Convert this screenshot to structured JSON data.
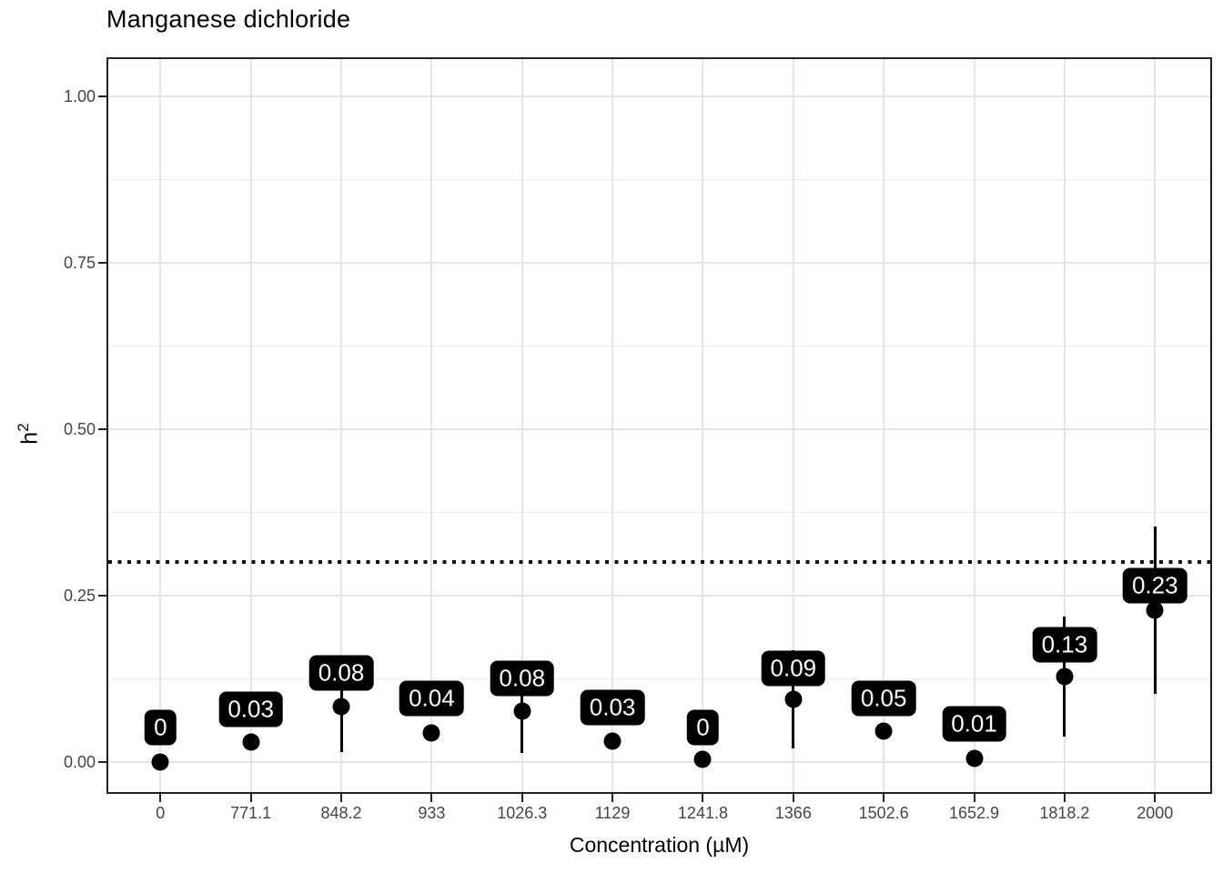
{
  "chart_data": {
    "type": "scatter",
    "subtype": "pointrange-with-labels",
    "title": "Manganese dichloride",
    "xlabel": "Concentration (µM)",
    "ylabel": "h²",
    "ylabel_base": "h",
    "ylabel_sup": "2",
    "grid": true,
    "legend": false,
    "ylim": [
      -0.05,
      1.06
    ],
    "y_major_ticks": [
      {
        "label": "0.00",
        "value": 0.0
      },
      {
        "label": "0.25",
        "value": 0.25
      },
      {
        "label": "0.50",
        "value": 0.5
      },
      {
        "label": "0.75",
        "value": 0.75
      },
      {
        "label": "1.00",
        "value": 1.0
      }
    ],
    "y_minor_gridlines": [
      0.125,
      0.375,
      0.625,
      0.875
    ],
    "reference_line": {
      "value": 0.3,
      "style": "dotted",
      "color": "#000000"
    },
    "categories": [
      "0",
      "771.1",
      "848.2",
      "933",
      "1026.3",
      "1129",
      "1241.8",
      "1366",
      "1502.6",
      "1652.9",
      "1818.2",
      "2000"
    ],
    "points": [
      {
        "category": "0",
        "value": 0.0,
        "label": "0",
        "lo": null,
        "hi": null,
        "label_center": 0.052
      },
      {
        "category": "771.1",
        "value": 0.03,
        "label": "0.03",
        "lo": null,
        "hi": null,
        "label_center": 0.079
      },
      {
        "category": "848.2",
        "value": 0.083,
        "label": "0.08",
        "lo": 0.015,
        "hi": 0.151,
        "label_center": 0.134
      },
      {
        "category": "933",
        "value": 0.044,
        "label": "0.04",
        "lo": null,
        "hi": null,
        "label_center": 0.096
      },
      {
        "category": "1026.3",
        "value": 0.077,
        "label": "0.08",
        "lo": 0.014,
        "hi": 0.14,
        "label_center": 0.126
      },
      {
        "category": "1129",
        "value": 0.031,
        "label": "0.03",
        "lo": null,
        "hi": null,
        "label_center": 0.082
      },
      {
        "category": "1241.8",
        "value": 0.004,
        "label": "0",
        "lo": null,
        "hi": null,
        "label_center": 0.052
      },
      {
        "category": "1366",
        "value": 0.094,
        "label": "0.09",
        "lo": 0.02,
        "hi": 0.168,
        "label_center": 0.141
      },
      {
        "category": "1502.6",
        "value": 0.046,
        "label": "0.05",
        "lo": null,
        "hi": null,
        "label_center": 0.096
      },
      {
        "category": "1652.9",
        "value": 0.006,
        "label": "0.01",
        "lo": null,
        "hi": null,
        "label_center": 0.057
      },
      {
        "category": "1818.2",
        "value": 0.128,
        "label": "0.13",
        "lo": 0.038,
        "hi": 0.219,
        "label_center": 0.176
      },
      {
        "category": "2000",
        "value": 0.228,
        "label": "0.23",
        "lo": 0.102,
        "hi": 0.354,
        "label_center": 0.265
      }
    ],
    "colors": {
      "point": "#000000",
      "label_fill": "#000000",
      "label_text": "#ffffff",
      "grid_major": "#e5e5e5",
      "grid_minor": "#efefef",
      "panel_border": "#222222",
      "axis_text": "#454545",
      "title_text": "#000000"
    }
  }
}
